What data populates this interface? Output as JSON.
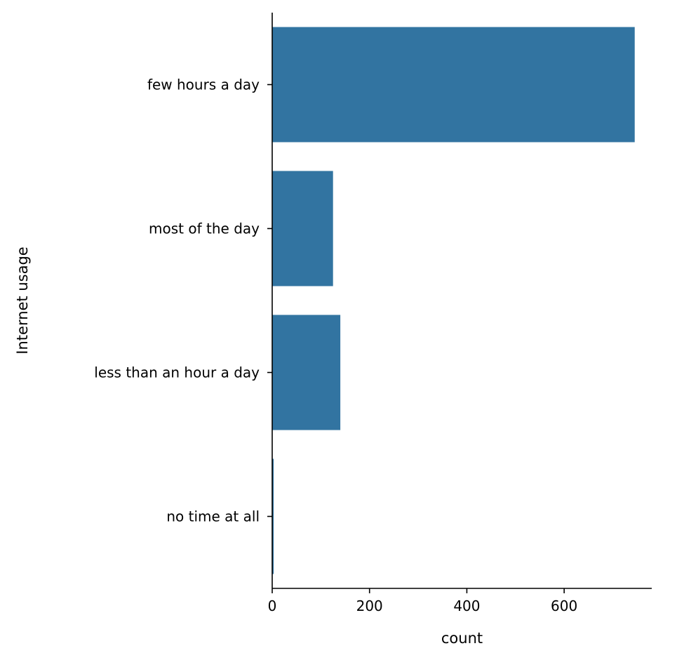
{
  "chart_data": {
    "type": "bar",
    "orientation": "horizontal",
    "categories": [
      "few hours a day",
      "most of the day",
      "less than an hour a day",
      "no time at all"
    ],
    "values": [
      745,
      125,
      140,
      3
    ],
    "xlabel": "count",
    "ylabel": "Internet usage",
    "xlim": [
      0,
      780
    ],
    "xticks": [
      0,
      200,
      400,
      600
    ],
    "grid": false,
    "color": "#3274a1",
    "spines": "left-bottom"
  }
}
